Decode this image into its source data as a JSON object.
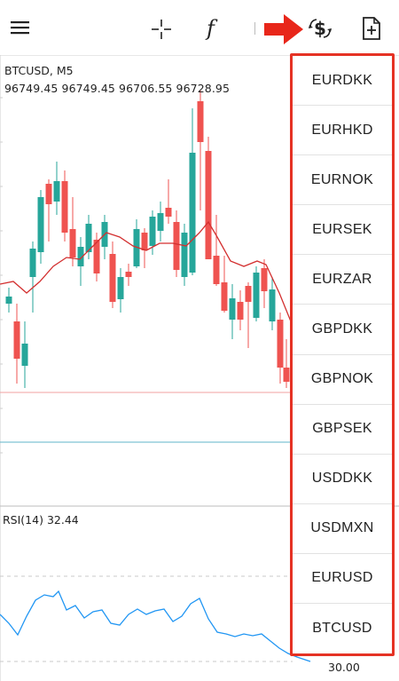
{
  "toolbar": {
    "menu_icon": "hamburger-menu-icon",
    "crosshair_icon": "crosshair-icon",
    "indicator_icon": "function-f-icon",
    "symbol_icon": "currency-exchange-icon",
    "new_order_icon": "add-document-icon",
    "annotation_arrow_color": "#e8261a"
  },
  "chart": {
    "symbol_timeframe": "BTCUSD, M5",
    "ohlc": "96749.45 96749.45 96706.55 96728.95",
    "bull_color": "#26a69a",
    "bear_color": "#ef5350",
    "ma_color": "#d32f2f",
    "rsi_color": "#2196f3"
  },
  "rsi": {
    "label": "RSI(14) 32.44",
    "level_label": "30.00"
  },
  "symbol_list": {
    "border_color": "#e53224",
    "items": [
      {
        "label": "EURDKK"
      },
      {
        "label": "EURHKD"
      },
      {
        "label": "EURNOK"
      },
      {
        "label": "EURSEK"
      },
      {
        "label": "EURZAR"
      },
      {
        "label": "GBPDKK"
      },
      {
        "label": "GBPNOK"
      },
      {
        "label": "GBPSEK"
      },
      {
        "label": "USDDKK"
      },
      {
        "label": "USDMXN"
      },
      {
        "label": "EURUSD"
      },
      {
        "label": "BTCUSD"
      }
    ]
  }
}
